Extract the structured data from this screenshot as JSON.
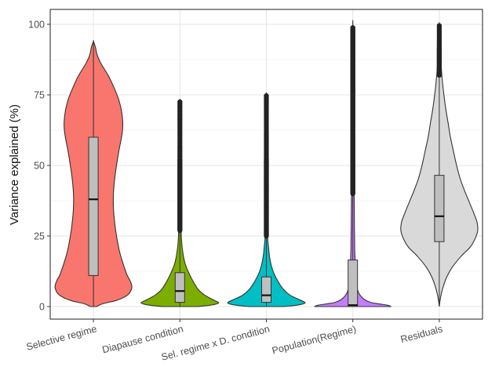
{
  "chart_data": {
    "type": "violin",
    "title": "",
    "xlabel": "",
    "ylabel": "Variance explained (%)",
    "ylim": [
      0,
      100
    ],
    "yticks": [
      0,
      25,
      50,
      75,
      100
    ],
    "grid": true,
    "legend": "none",
    "categories": [
      "Selective regime",
      "Diapause condition",
      "Sel. regime x D. condition",
      "Population(Regime)",
      "Residuals"
    ],
    "series": [
      {
        "category": "Selective regime",
        "color": "#f8766d",
        "box": {
          "q1": 11,
          "median": 38,
          "q3": 60,
          "whisker_low": 0,
          "whisker_high": 94
        },
        "outlier_range": null,
        "density": [
          [
            0,
            0.08
          ],
          [
            1,
            0.24
          ],
          [
            2,
            0.55
          ],
          [
            3,
            0.75
          ],
          [
            4,
            0.88
          ],
          [
            5,
            0.95
          ],
          [
            7,
            1.0
          ],
          [
            9,
            0.96
          ],
          [
            11,
            0.88
          ],
          [
            14,
            0.8
          ],
          [
            17,
            0.73
          ],
          [
            20,
            0.67
          ],
          [
            25,
            0.6
          ],
          [
            30,
            0.55
          ],
          [
            35,
            0.52
          ],
          [
            40,
            0.52
          ],
          [
            45,
            0.55
          ],
          [
            50,
            0.6
          ],
          [
            55,
            0.66
          ],
          [
            60,
            0.73
          ],
          [
            63,
            0.76
          ],
          [
            66,
            0.76
          ],
          [
            70,
            0.72
          ],
          [
            74,
            0.64
          ],
          [
            78,
            0.52
          ],
          [
            82,
            0.38
          ],
          [
            86,
            0.2
          ],
          [
            89,
            0.1
          ],
          [
            92,
            0.05
          ],
          [
            94,
            0.0
          ]
        ]
      },
      {
        "category": "Diapause condition",
        "color": "#7cae00",
        "box": {
          "q1": 1.5,
          "median": 5.5,
          "q3": 12,
          "whisker_low": 0,
          "whisker_high": 27
        },
        "outlier_range": [
          27,
          73
        ],
        "density": [
          [
            0,
            0.45
          ],
          [
            0.5,
            0.8
          ],
          [
            1,
            0.97
          ],
          [
            1.5,
            1.0
          ],
          [
            2.5,
            0.85
          ],
          [
            4,
            0.65
          ],
          [
            6,
            0.48
          ],
          [
            9,
            0.34
          ],
          [
            12,
            0.23
          ],
          [
            15,
            0.14
          ],
          [
            18,
            0.09
          ],
          [
            21,
            0.06
          ],
          [
            24,
            0.04
          ],
          [
            27,
            0.035
          ],
          [
            40,
            0.03
          ],
          [
            60,
            0.02
          ],
          [
            72,
            0.0
          ]
        ]
      },
      {
        "category": "Sel. regime x D. condition",
        "color": "#00bfc4",
        "box": {
          "q1": 1.5,
          "median": 4,
          "q3": 10.5,
          "whisker_low": 0,
          "whisker_high": 25
        },
        "outlier_range": [
          25,
          75
        ],
        "density": [
          [
            0,
            0.45
          ],
          [
            0.5,
            0.8
          ],
          [
            1,
            0.97
          ],
          [
            1.5,
            1.0
          ],
          [
            2.5,
            0.85
          ],
          [
            4,
            0.62
          ],
          [
            6,
            0.45
          ],
          [
            9,
            0.3
          ],
          [
            12,
            0.19
          ],
          [
            15,
            0.12
          ],
          [
            18,
            0.08
          ],
          [
            22,
            0.05
          ],
          [
            25,
            0.035
          ],
          [
            40,
            0.025
          ],
          [
            60,
            0.02
          ],
          [
            74,
            0.0
          ]
        ]
      },
      {
        "category": "Population(Regime)",
        "color": "#c77cff",
        "box": {
          "q1": 0,
          "median": 0.5,
          "q3": 16.5,
          "whisker_low": 0,
          "whisker_high": 40
        },
        "outlier_range": [
          40,
          99
        ],
        "density": [
          [
            0,
            1.0
          ],
          [
            0.5,
            0.9
          ],
          [
            1,
            0.66
          ],
          [
            1.5,
            0.46
          ],
          [
            2.5,
            0.3
          ],
          [
            4,
            0.19
          ],
          [
            6,
            0.12
          ],
          [
            9,
            0.09
          ],
          [
            12,
            0.07
          ],
          [
            16,
            0.06
          ],
          [
            20,
            0.05
          ],
          [
            25,
            0.045
          ],
          [
            30,
            0.04
          ],
          [
            40,
            0.035
          ],
          [
            60,
            0.03
          ],
          [
            80,
            0.03
          ],
          [
            99,
            0.0
          ]
        ]
      },
      {
        "category": "Residuals",
        "color": "#d9d9d9",
        "box": {
          "q1": 23,
          "median": 32,
          "q3": 46.5,
          "whisker_low": 0,
          "whisker_high": 82
        },
        "outlier_range": [
          82,
          100
        ],
        "density": [
          [
            0,
            0.0
          ],
          [
            3,
            0.03
          ],
          [
            6,
            0.08
          ],
          [
            10,
            0.18
          ],
          [
            14,
            0.34
          ],
          [
            18,
            0.58
          ],
          [
            21,
            0.8
          ],
          [
            24,
            0.93
          ],
          [
            27,
            1.0
          ],
          [
            30,
            0.98
          ],
          [
            33,
            0.9
          ],
          [
            37,
            0.78
          ],
          [
            41,
            0.66
          ],
          [
            45,
            0.55
          ],
          [
            50,
            0.45
          ],
          [
            55,
            0.37
          ],
          [
            60,
            0.29
          ],
          [
            65,
            0.23
          ],
          [
            70,
            0.17
          ],
          [
            75,
            0.12
          ],
          [
            80,
            0.08
          ],
          [
            85,
            0.05
          ],
          [
            90,
            0.04
          ],
          [
            95,
            0.03
          ],
          [
            100,
            0.0
          ]
        ]
      }
    ]
  }
}
